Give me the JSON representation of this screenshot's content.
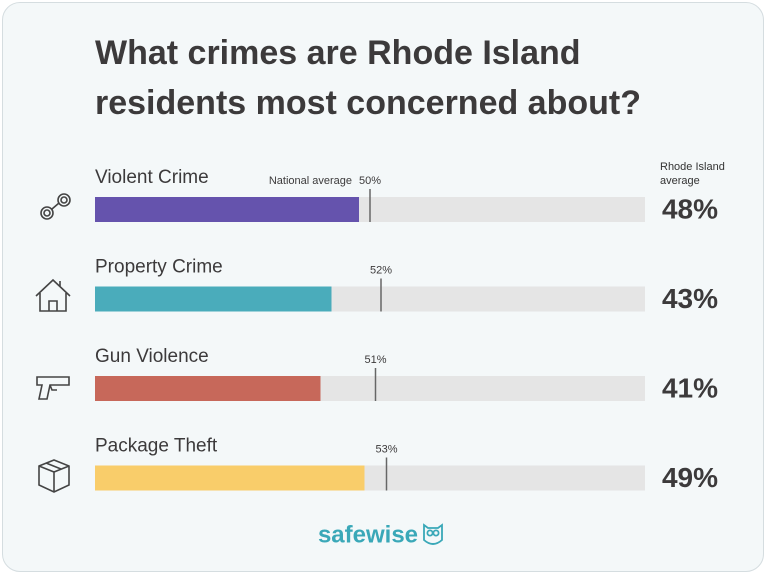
{
  "chart_data": {
    "type": "bar",
    "orientation": "horizontal",
    "title": "What crimes are Rhode Island residents most concerned about?",
    "categories": [
      "Violent Crime",
      "Property Crime",
      "Gun Violence",
      "Package Theft"
    ],
    "series": [
      {
        "name": "Rhode Island average",
        "values": [
          48,
          43,
          41,
          49
        ],
        "value_labels": [
          "48%",
          "43%",
          "41%",
          "49%"
        ],
        "colors": [
          "#6553ad",
          "#4aacbb",
          "#c7685a",
          "#f9cd6a"
        ]
      },
      {
        "name": "National average",
        "values": [
          50,
          52,
          51,
          53
        ],
        "value_labels": [
          "50%",
          "52%",
          "51%",
          "53%"
        ],
        "color": "#666666"
      }
    ],
    "xlim": [
      0,
      100
    ]
  },
  "logo": "safewise"
}
